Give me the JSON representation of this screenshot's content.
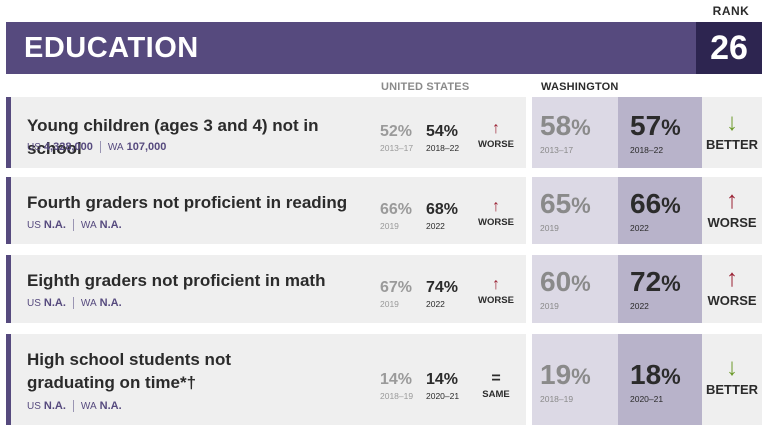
{
  "header": {
    "title": "EDUCATION",
    "rank_label": "RANK",
    "rank_value": "26"
  },
  "columns": {
    "us": "UNITED STATES",
    "wa": "WASHINGTON"
  },
  "colors": {
    "purple": "#564a7e",
    "dark_purple": "#2d2550",
    "worse": "#9b2335",
    "better": "#6d9b2b"
  },
  "rows": [
    {
      "label": "Young children (ages 3 and 4) not in school",
      "us_key": "US",
      "us_count": "4,328,000",
      "wa_key": "WA",
      "wa_count": "107,000",
      "us_old": "52%",
      "us_old_year": "2013–17",
      "us_new": "54%",
      "us_new_year": "2018–22",
      "us_arrow": "↑",
      "us_trend": "WORSE",
      "wa_old": "58",
      "wa_old_pct": "%",
      "wa_old_year": "2013–17",
      "wa_new": "57",
      "wa_new_pct": "%",
      "wa_new_year": "2018–22",
      "wa_arrow": "↓",
      "wa_trend": "BETTER"
    },
    {
      "label": "Fourth graders not proficient in reading",
      "us_key": "US",
      "us_count": "N.A.",
      "wa_key": "WA",
      "wa_count": "N.A.",
      "us_old": "66%",
      "us_old_year": "2019",
      "us_new": "68%",
      "us_new_year": "2022",
      "us_arrow": "↑",
      "us_trend": "WORSE",
      "wa_old": "65",
      "wa_old_pct": "%",
      "wa_old_year": "2019",
      "wa_new": "66",
      "wa_new_pct": "%",
      "wa_new_year": "2022",
      "wa_arrow": "↑",
      "wa_trend": "WORSE"
    },
    {
      "label": "Eighth graders not proficient in math",
      "us_key": "US",
      "us_count": "N.A.",
      "wa_key": "WA",
      "wa_count": "N.A.",
      "us_old": "67%",
      "us_old_year": "2019",
      "us_new": "74%",
      "us_new_year": "2022",
      "us_arrow": "↑",
      "us_trend": "WORSE",
      "wa_old": "60",
      "wa_old_pct": "%",
      "wa_old_year": "2019",
      "wa_new": "72",
      "wa_new_pct": "%",
      "wa_new_year": "2022",
      "wa_arrow": "↑",
      "wa_trend": "WORSE"
    },
    {
      "label": "High school students not graduating on time*†",
      "us_key": "US",
      "us_count": "N.A.",
      "wa_key": "WA",
      "wa_count": "N.A.",
      "us_old": "14%",
      "us_old_year": "2018–19",
      "us_new": "14%",
      "us_new_year": "2020–21",
      "us_arrow": "=",
      "us_trend": "SAME",
      "wa_old": "19",
      "wa_old_pct": "%",
      "wa_old_year": "2018–19",
      "wa_new": "18",
      "wa_new_pct": "%",
      "wa_new_year": "2020–21",
      "wa_arrow": "↓",
      "wa_trend": "BETTER"
    }
  ]
}
